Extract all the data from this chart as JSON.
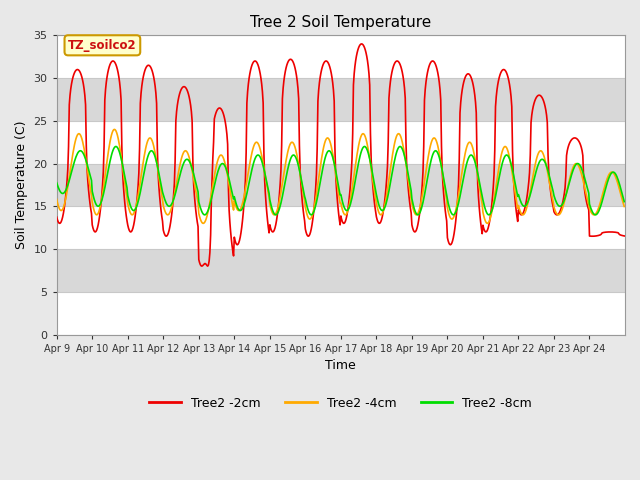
{
  "title": "Tree 2 Soil Temperature",
  "ylabel": "Soil Temperature (C)",
  "xlabel": "Time",
  "annotation": "TZ_soilco2",
  "ylim": [
    0,
    35
  ],
  "background_color": "#e8e8e8",
  "plot_bg_color": "#ffffff",
  "series_colors": [
    "#ee0000",
    "#ffaa00",
    "#00dd00"
  ],
  "series_labels": [
    "Tree2 -2cm",
    "Tree2 -4cm",
    "Tree2 -8cm"
  ],
  "x_tick_labels": [
    "Apr 9",
    "Apr 10",
    "Apr 11",
    "Apr 12",
    "Apr 13",
    "Apr 14",
    "Apr 15",
    "Apr 16",
    "Apr 17",
    "Apr 18",
    "Apr 19",
    "Apr 20",
    "Apr 21",
    "Apr 22",
    "Apr 23",
    "Apr 24"
  ],
  "n_days": 16,
  "points_per_day": 48,
  "gray_band_color": "#d8d8d8",
  "grid_line_color": "#c8c8c8"
}
